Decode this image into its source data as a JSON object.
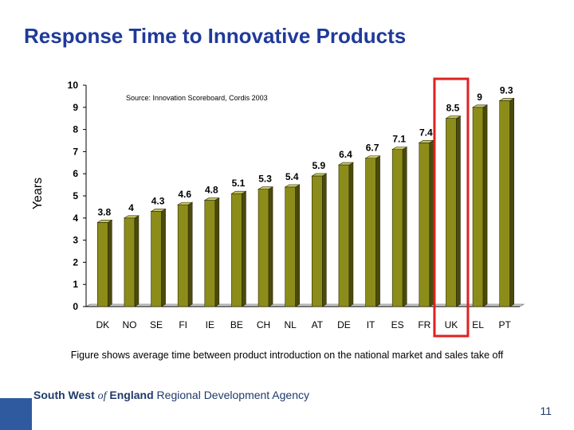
{
  "slide": {
    "title": "Response Time to Innovative Products",
    "caption": "Figure shows average time between product introduction on the national market and sales take off",
    "footer": {
      "brand_part1": "South West",
      "brand_part2": "of",
      "brand_part3": "England",
      "brand_part4": "Regional Development Agency",
      "page_number": "11"
    }
  },
  "colors": {
    "title": "#1f3a9a",
    "bar_front": "#8c8c1a",
    "bar_side": "#4a4a0c",
    "bar_top": "#c6c66a",
    "highlight": "#e02020",
    "footer_box": "#2f5aa0"
  },
  "chart_data": {
    "type": "bar",
    "source_note": "Source: Innovation Scoreboard, Cordis 2003",
    "ylabel": "Years",
    "xlabel": "",
    "ylim": [
      0,
      10
    ],
    "yticks": [
      0,
      1,
      2,
      3,
      4,
      5,
      6,
      7,
      8,
      9,
      10
    ],
    "categories": [
      "DK",
      "NO",
      "SE",
      "FI",
      "IE",
      "BE",
      "CH",
      "NL",
      "AT",
      "DE",
      "IT",
      "ES",
      "FR",
      "UK",
      "EL",
      "PT"
    ],
    "values": [
      3.8,
      4,
      4.3,
      4.6,
      4.8,
      5.1,
      5.3,
      5.4,
      5.9,
      6.4,
      6.7,
      7.1,
      7.4,
      8.5,
      9,
      9.3
    ],
    "value_labels": [
      "3.8",
      "4",
      "4.3",
      "4.6",
      "4.8",
      "5.1",
      "5.3",
      "5.4",
      "5.9",
      "6.4",
      "6.7",
      "7.1",
      "7.4",
      "8.5",
      "9",
      "9.3"
    ],
    "highlighted_category": "UK"
  }
}
